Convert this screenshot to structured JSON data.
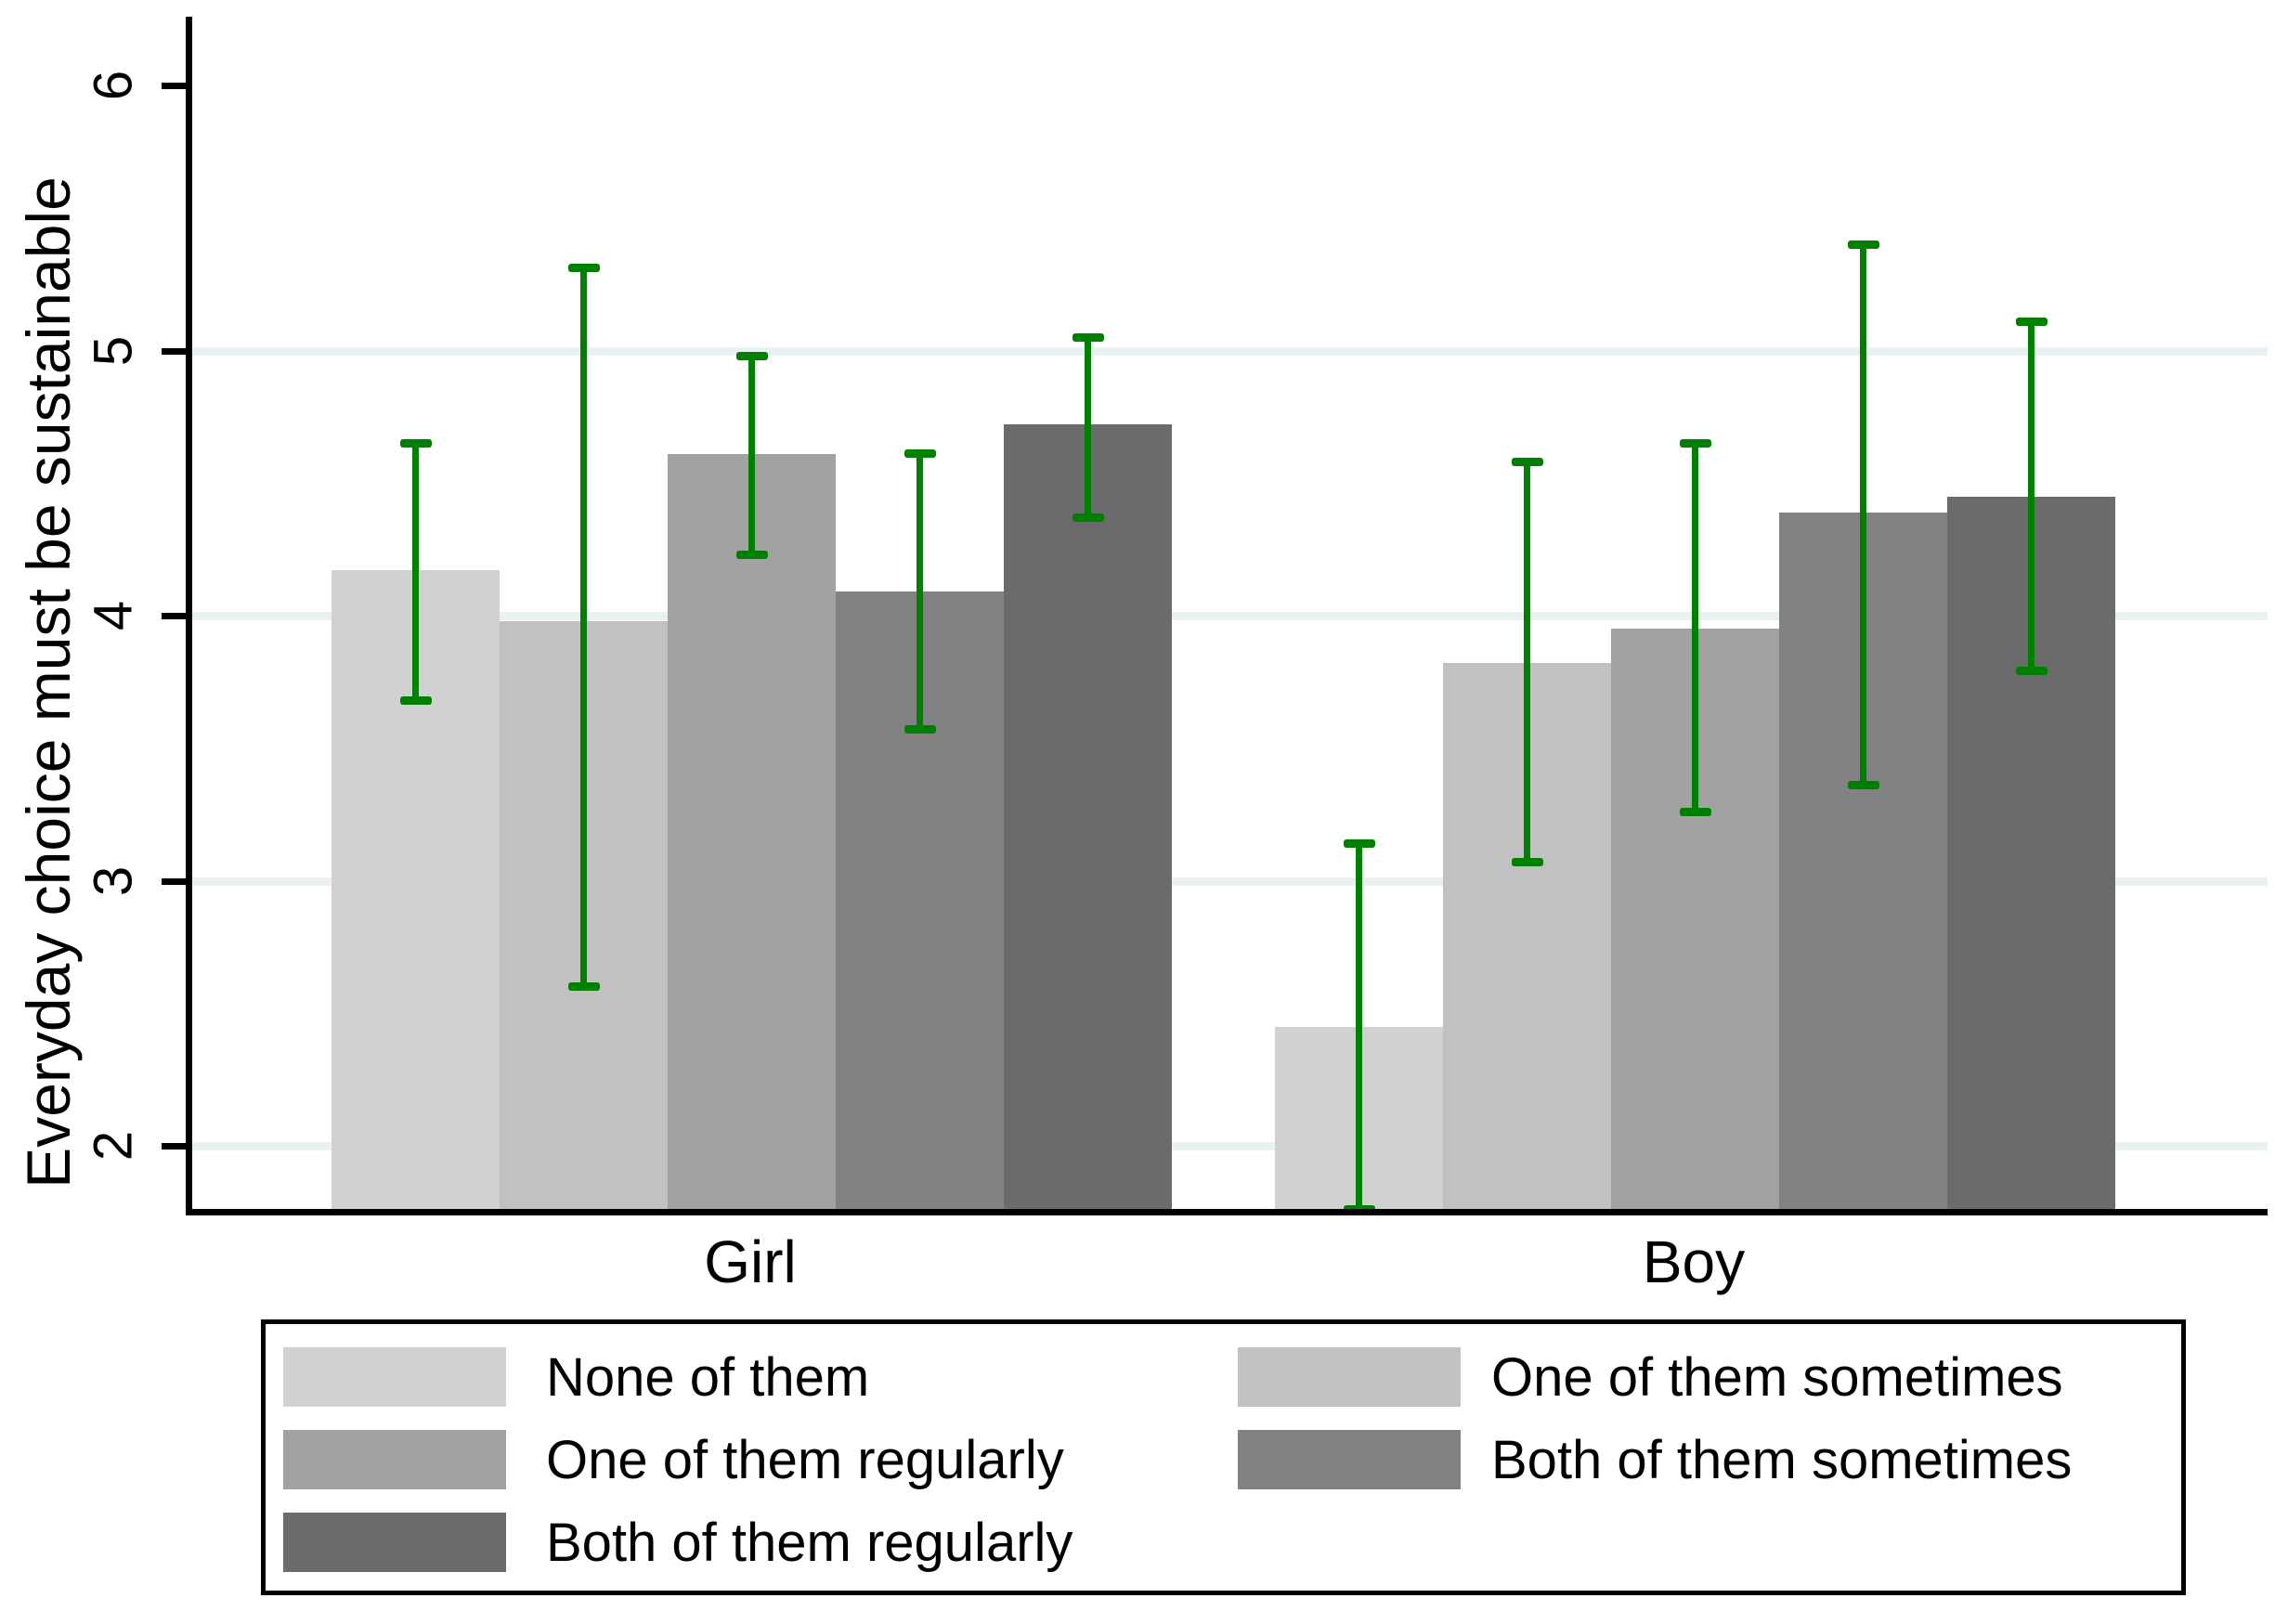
{
  "chart_data": {
    "type": "bar",
    "title": "",
    "ylabel": "Everyday choice must be sustainable",
    "categories": [
      "Girl",
      "Boy"
    ],
    "yticks": [
      2,
      3,
      4,
      5,
      6
    ],
    "ylim": [
      1.75,
      6.2
    ],
    "grid_on": true,
    "grid_values": [
      2,
      3,
      4,
      5
    ],
    "grid_color": "#e9f1f2",
    "axis_color": "#000000",
    "error_bar_color": "#008000",
    "legend_position": "bottom",
    "series": [
      {
        "name": "None of them",
        "color": "#d1d1d1",
        "values": [
          4.17,
          2.45
        ],
        "ci_low": [
          3.68,
          1.76
        ],
        "ci_high": [
          4.65,
          3.14
        ]
      },
      {
        "name": "One of them sometimes",
        "color": "#c1c1c1",
        "values": [
          3.98,
          3.82
        ],
        "ci_low": [
          2.6,
          3.07
        ],
        "ci_high": [
          5.31,
          4.58
        ]
      },
      {
        "name": "One of them regularly",
        "color": "#a2a2a2",
        "values": [
          4.61,
          3.95
        ],
        "ci_low": [
          4.23,
          3.26
        ],
        "ci_high": [
          4.98,
          4.65
        ]
      },
      {
        "name": "Both of them sometimes",
        "color": "#828282",
        "values": [
          4.09,
          4.39
        ],
        "ci_low": [
          3.57,
          3.36
        ],
        "ci_high": [
          4.61,
          5.4
        ]
      },
      {
        "name": "Both of them regularly",
        "color": "#6b6b6b",
        "values": [
          4.72,
          4.45
        ],
        "ci_low": [
          4.37,
          3.79
        ],
        "ci_high": [
          5.05,
          5.11
        ]
      }
    ],
    "legend_columns": [
      [
        0,
        2,
        4
      ],
      [
        1,
        3
      ]
    ]
  }
}
